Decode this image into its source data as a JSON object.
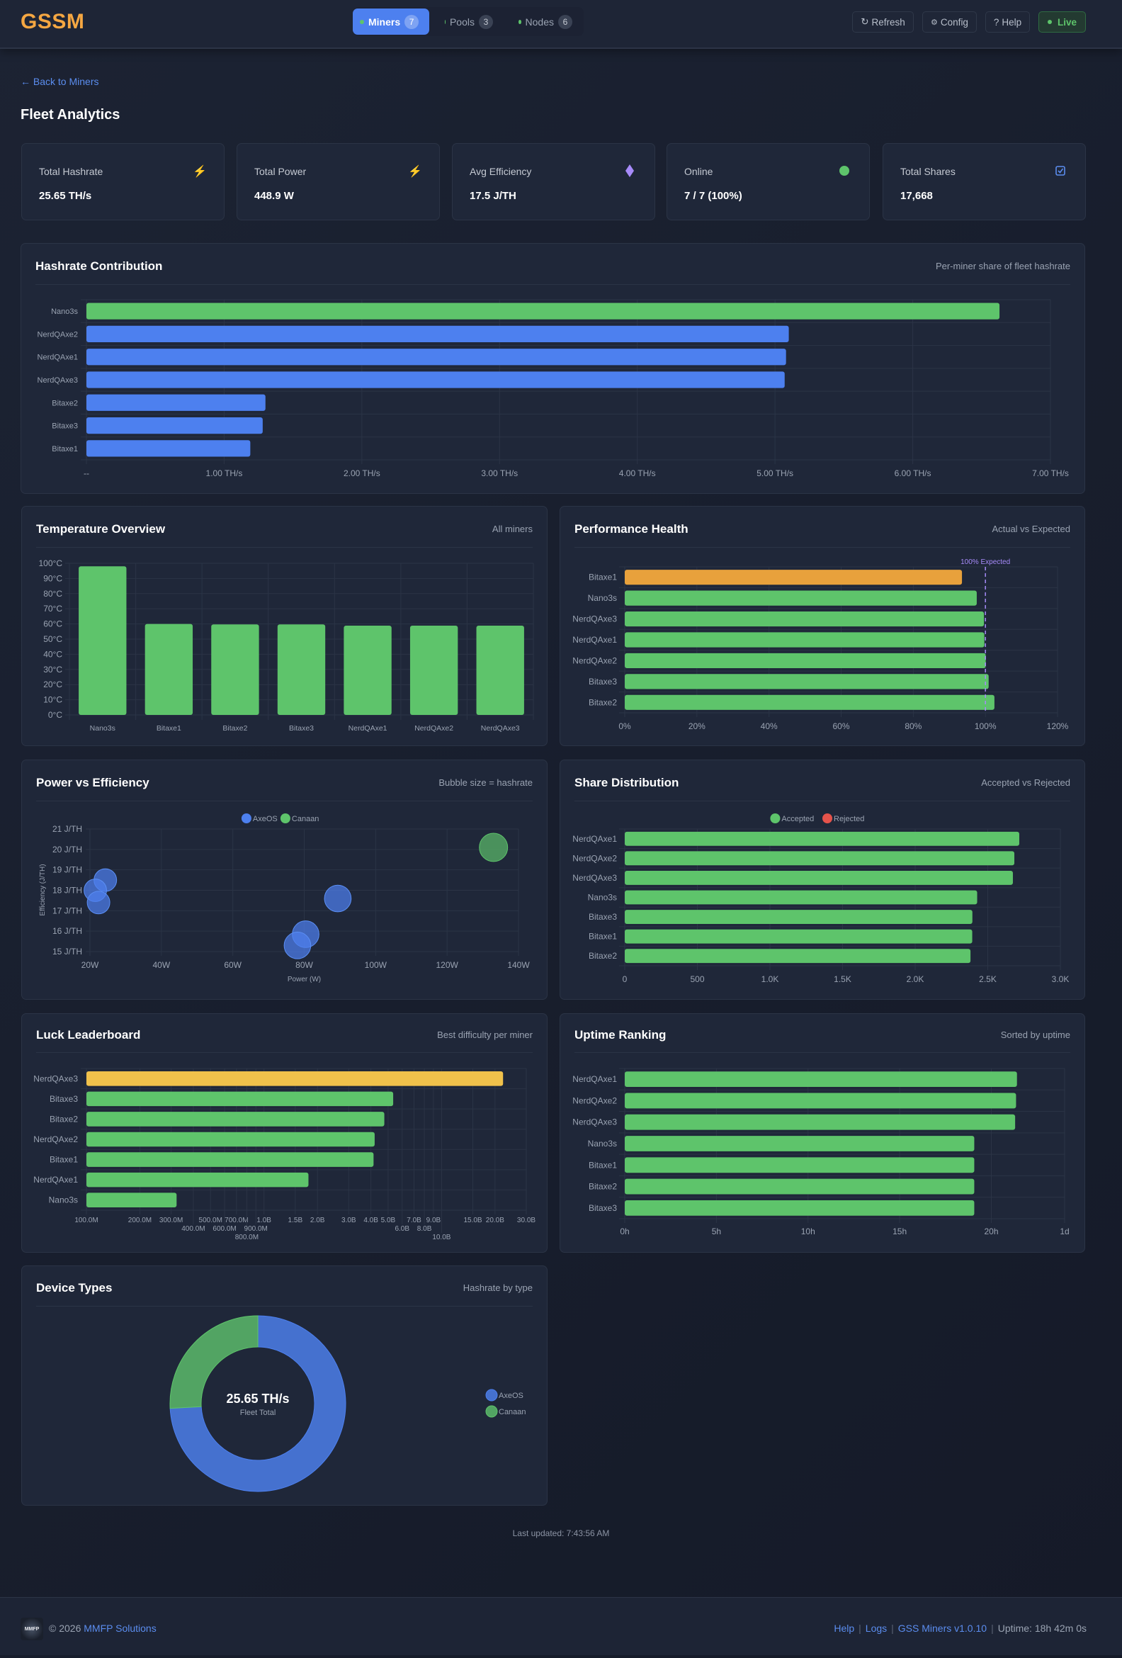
{
  "app": {
    "logo": "GSSM"
  },
  "nav": [
    {
      "label": "Miners",
      "count": "7",
      "active": true
    },
    {
      "label": "Pools",
      "count": "3",
      "active": false
    },
    {
      "label": "Nodes",
      "count": "6",
      "active": false
    }
  ],
  "actions": {
    "refresh": "Refresh",
    "config": "Config",
    "help": "Help",
    "live": "Live"
  },
  "back_link": "Back to Miners",
  "page_title": "Fleet Analytics",
  "stats": [
    {
      "label": "Total Hashrate",
      "value": "25.65 TH/s",
      "icon": "lightning-icon"
    },
    {
      "label": "Total Power",
      "value": "448.9 W",
      "icon": "lightning-icon"
    },
    {
      "label": "Avg Efficiency",
      "value": "17.5 J/TH",
      "icon": "diamond-icon"
    },
    {
      "label": "Online",
      "value": "7 / 7 (100%)",
      "icon": "status-dot-icon"
    },
    {
      "label": "Total Shares",
      "value": "17,668",
      "icon": "checkbox-icon"
    }
  ],
  "panels": [
    {
      "title": "Hashrate Contribution",
      "subtitle": "Per-miner share of fleet hashrate"
    },
    {
      "title": "Temperature Overview",
      "subtitle": "All miners"
    },
    {
      "title": "Performance Health",
      "subtitle": "Actual vs Expected"
    },
    {
      "title": "Power vs Efficiency",
      "subtitle": "Bubble size = hashrate"
    },
    {
      "title": "Share Distribution",
      "subtitle": "Accepted vs Rejected"
    },
    {
      "title": "Luck Leaderboard",
      "subtitle": "Best difficulty per miner"
    },
    {
      "title": "Uptime Ranking",
      "subtitle": "Sorted by uptime"
    },
    {
      "title": "Device Types",
      "subtitle": "Hashrate by type"
    }
  ],
  "colors": {
    "green": "#5ec46b",
    "blue": "#4d80ef",
    "orange": "#e8a13c",
    "yellow": "#f0c14b",
    "purple": "#a78bfa",
    "donut_blue": "#4571cf",
    "donut_green": "#52a463"
  },
  "chart_data": [
    {
      "type": "bar",
      "orientation": "horizontal",
      "unit": "TH/s",
      "categories": [
        "Nano3s",
        "NerdQAxe2",
        "NerdQAxe1",
        "NerdQAxe3",
        "Bitaxe2",
        "Bitaxe3",
        "Bitaxe1"
      ],
      "values": [
        6.63,
        5.1,
        5.08,
        5.07,
        1.3,
        1.28,
        1.19
      ],
      "bar_colors": [
        "green",
        "blue",
        "blue",
        "blue",
        "blue",
        "blue",
        "blue"
      ],
      "xlim": [
        0,
        7
      ],
      "grid": true,
      "ticks": [
        {
          "value": 0,
          "label": "--"
        },
        {
          "value": 1,
          "label": "1.00 TH/s"
        },
        {
          "value": 2,
          "label": "2.00 TH/s"
        },
        {
          "value": 3,
          "label": "3.00 TH/s"
        },
        {
          "value": 4,
          "label": "4.00 TH/s"
        },
        {
          "value": 5,
          "label": "5.00 TH/s"
        },
        {
          "value": 6,
          "label": "6.00 TH/s"
        },
        {
          "value": 7,
          "label": "7.00 TH/s"
        }
      ]
    },
    {
      "type": "bar",
      "orientation": "vertical",
      "unit": "°C",
      "categories": [
        "Nano3s",
        "Bitaxe1",
        "Bitaxe2",
        "Bitaxe3",
        "NerdQAxe1",
        "NerdQAxe2",
        "NerdQAxe3"
      ],
      "values": [
        98,
        60,
        59.7,
        59.7,
        58.9,
        58.9,
        58.9
      ],
      "bar_colors": [
        "green",
        "green",
        "green",
        "green",
        "green",
        "green",
        "green"
      ],
      "ylim": [
        0,
        100
      ],
      "grid": true,
      "ticks": [
        {
          "value": 0,
          "label": "0°C"
        },
        {
          "value": 10,
          "label": "10°C"
        },
        {
          "value": 20,
          "label": "20°C"
        },
        {
          "value": 30,
          "label": "30°C"
        },
        {
          "value": 40,
          "label": "40°C"
        },
        {
          "value": 50,
          "label": "50°C"
        },
        {
          "value": 60,
          "label": "60°C"
        },
        {
          "value": 70,
          "label": "70°C"
        },
        {
          "value": 80,
          "label": "80°C"
        },
        {
          "value": 90,
          "label": "90°C"
        },
        {
          "value": 100,
          "label": "100°C"
        }
      ]
    },
    {
      "type": "bar",
      "orientation": "horizontal",
      "unit": "%",
      "categories": [
        "Bitaxe1",
        "Nano3s",
        "NerdQAxe3",
        "NerdQAxe1",
        "NerdQAxe2",
        "Bitaxe3",
        "Bitaxe2"
      ],
      "values": [
        93.5,
        97.6,
        99.6,
        99.7,
        100.1,
        100.9,
        102.5
      ],
      "bar_colors": [
        "orange",
        "green",
        "green",
        "green",
        "green",
        "green",
        "green"
      ],
      "xlim": [
        0,
        120
      ],
      "grid": true,
      "reference_line": {
        "value": 100,
        "label": "100% Expected",
        "color": "purple"
      },
      "ticks": [
        {
          "value": 0,
          "label": "0%"
        },
        {
          "value": 20,
          "label": "20%"
        },
        {
          "value": 40,
          "label": "40%"
        },
        {
          "value": 60,
          "label": "60%"
        },
        {
          "value": 80,
          "label": "80%"
        },
        {
          "value": 100,
          "label": "100%"
        },
        {
          "value": 120,
          "label": "120%"
        }
      ]
    },
    {
      "type": "scatter",
      "variant": "bubble",
      "xlabel": "Power (W)",
      "ylabel": "Efficiency (J/TH)",
      "xlim": [
        20,
        140
      ],
      "ylim": [
        15,
        21
      ],
      "grid": true,
      "legend": "top-center",
      "series": [
        {
          "name": "AxeOS",
          "color": "blue",
          "points": [
            {
              "x": 24.3,
              "y": 18.5,
              "r": 1.3
            },
            {
              "x": 21.5,
              "y": 18.0,
              "r": 1.19
            },
            {
              "x": 22.4,
              "y": 17.4,
              "r": 1.28
            },
            {
              "x": 89.4,
              "y": 17.6,
              "r": 5.1
            },
            {
              "x": 80.4,
              "y": 15.85,
              "r": 5.08
            },
            {
              "x": 78.1,
              "y": 15.3,
              "r": 5.07
            }
          ]
        },
        {
          "name": "Canaan",
          "color": "green",
          "points": [
            {
              "x": 133,
              "y": 20.1,
              "r": 6.63
            }
          ]
        }
      ],
      "xticks": [
        {
          "value": 20,
          "label": "20W"
        },
        {
          "value": 40,
          "label": "40W"
        },
        {
          "value": 60,
          "label": "60W"
        },
        {
          "value": 80,
          "label": "80W"
        },
        {
          "value": 100,
          "label": "100W"
        },
        {
          "value": 120,
          "label": "120W"
        },
        {
          "value": 140,
          "label": "140W"
        }
      ],
      "yticks": [
        {
          "value": 15,
          "label": "15 J/TH"
        },
        {
          "value": 16,
          "label": "16 J/TH"
        },
        {
          "value": 17,
          "label": "17 J/TH"
        },
        {
          "value": 18,
          "label": "18 J/TH"
        },
        {
          "value": 19,
          "label": "19 J/TH"
        },
        {
          "value": 20,
          "label": "20 J/TH"
        },
        {
          "value": 21,
          "label": "21 J/TH"
        }
      ]
    },
    {
      "type": "bar",
      "orientation": "horizontal",
      "stacked": true,
      "legend": "top-center",
      "categories": [
        "NerdQAxe1",
        "NerdQAxe2",
        "NerdQAxe3",
        "Nano3s",
        "Bitaxe3",
        "Bitaxe1",
        "Bitaxe2"
      ],
      "series": [
        {
          "name": "Accepted",
          "color": "green",
          "values": [
            2717,
            2683,
            2673,
            2427,
            2394,
            2393,
            2381
          ]
        },
        {
          "name": "Rejected",
          "color": "#e5534b",
          "values": [
            0,
            0,
            0,
            0,
            0,
            0,
            0
          ]
        }
      ],
      "xlim": [
        0,
        3000
      ],
      "grid": true,
      "ticks": [
        {
          "value": 0,
          "label": "0"
        },
        {
          "value": 500,
          "label": "500"
        },
        {
          "value": 1000,
          "label": "1.0K"
        },
        {
          "value": 1500,
          "label": "1.5K"
        },
        {
          "value": 2000,
          "label": "2.0K"
        },
        {
          "value": 2500,
          "label": "2.5K"
        },
        {
          "value": 3000,
          "label": "3.0K"
        }
      ]
    },
    {
      "type": "bar",
      "orientation": "horizontal",
      "xscale": "log",
      "categories": [
        "NerdQAxe3",
        "Bitaxe3",
        "Bitaxe2",
        "NerdQAxe2",
        "Bitaxe1",
        "NerdQAxe1",
        "Nano3s"
      ],
      "values": [
        22200000000,
        5340000000,
        4760000000,
        4200000000,
        4140000000,
        1780000000,
        322000000
      ],
      "bar_colors": [
        "yellow",
        "green",
        "green",
        "green",
        "green",
        "green",
        "green"
      ],
      "xlim": [
        100000000,
        30000000000
      ],
      "grid": true,
      "ticks": [
        {
          "value": 100000000.0,
          "label": "100.0M"
        },
        {
          "value": 200000000.0,
          "label": "200.0M"
        },
        {
          "value": 300000000.0,
          "label": "300.0M"
        },
        {
          "value": 400000000.0,
          "label": "400.0M"
        },
        {
          "value": 500000000.0,
          "label": "500.0M"
        },
        {
          "value": 600000000.0,
          "label": "600.0M"
        },
        {
          "value": 700000000.0,
          "label": "700.0M"
        },
        {
          "value": 800000000.0,
          "label": "800.0M"
        },
        {
          "value": 900000000.0,
          "label": "900.0M"
        },
        {
          "value": 1000000000.0,
          "label": "1.0B"
        },
        {
          "value": 1500000000.0,
          "label": "1.5B"
        },
        {
          "value": 2000000000.0,
          "label": "2.0B"
        },
        {
          "value": 3000000000.0,
          "label": "3.0B"
        },
        {
          "value": 4000000000.0,
          "label": "4.0B"
        },
        {
          "value": 5000000000.0,
          "label": "5.0B"
        },
        {
          "value": 6000000000.0,
          "label": "6.0B"
        },
        {
          "value": 7000000000.0,
          "label": "7.0B"
        },
        {
          "value": 8000000000.0,
          "label": "8.0B"
        },
        {
          "value": 9000000000.0,
          "label": "9.0B"
        },
        {
          "value": 10000000000.0,
          "label": "10.0B"
        },
        {
          "value": 15000000000.0,
          "label": "15.0B"
        },
        {
          "value": 20000000000.0,
          "label": "20.0B"
        },
        {
          "value": 30000000000.0,
          "label": "30.0B"
        }
      ]
    },
    {
      "type": "bar",
      "orientation": "horizontal",
      "unit": "h",
      "categories": [
        "NerdQAxe1",
        "NerdQAxe2",
        "NerdQAxe3",
        "Nano3s",
        "Bitaxe1",
        "Bitaxe2",
        "Bitaxe3"
      ],
      "values": [
        21.4,
        21.35,
        21.3,
        19.07,
        19.07,
        19.07,
        19.07
      ],
      "bar_colors": [
        "green",
        "green",
        "green",
        "green",
        "green",
        "green",
        "green"
      ],
      "xlim": [
        0,
        24
      ],
      "grid": true,
      "ticks": [
        {
          "value": 0,
          "label": "0h"
        },
        {
          "value": 5,
          "label": "5h"
        },
        {
          "value": 10,
          "label": "10h"
        },
        {
          "value": 15,
          "label": "15h"
        },
        {
          "value": 20,
          "label": "20h"
        },
        {
          "value": 24,
          "label": "1d"
        }
      ]
    },
    {
      "type": "pie",
      "variant": "doughnut",
      "legend": "right",
      "categories": [
        "AxeOS",
        "Canaan"
      ],
      "values": [
        19.02,
        6.63
      ],
      "slice_colors": [
        "donut_blue",
        "donut_green"
      ],
      "center_value": "25.65 TH/s",
      "center_label": "Fleet Total"
    }
  ],
  "last_updated": "Last updated: 7:43:56 AM",
  "footer": {
    "copyright": "© 2026",
    "company": "MMFP Solutions",
    "logo_text": "MMFP",
    "help": "Help",
    "logs": "Logs",
    "version": "GSS Miners v1.0.10",
    "uptime": "Uptime: 18h 42m 0s",
    "separator": "|"
  }
}
